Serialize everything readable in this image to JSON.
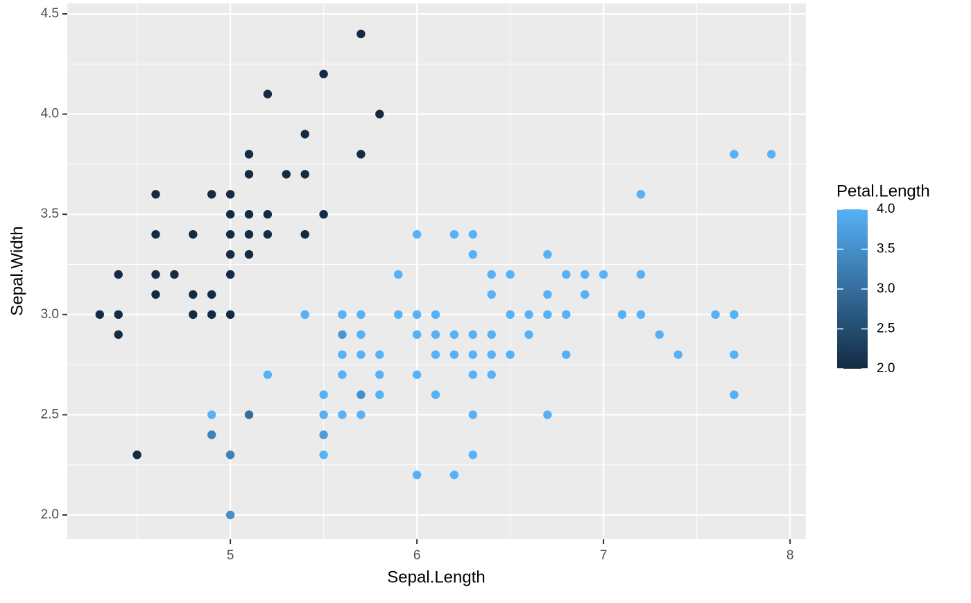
{
  "chart_data": {
    "type": "scatter",
    "x_label": "Sepal.Length",
    "y_label": "Sepal.Width",
    "xlim": [
      4.126,
      8.085
    ],
    "ylim": [
      1.879,
      4.552
    ],
    "xticks": [
      5,
      6,
      7,
      8
    ],
    "yticks": [
      {
        "value": 2,
        "label": "2.0"
      },
      {
        "value": 2.5,
        "label": "2.5"
      },
      {
        "value": 3,
        "label": "3.0"
      },
      {
        "value": 3.5,
        "label": "3.5"
      },
      {
        "value": 4,
        "label": "4.0"
      },
      {
        "value": 4.5,
        "label": "4.5"
      }
    ],
    "xminor": [
      4.5,
      5.5,
      6.5,
      7.5
    ],
    "yminor": [
      2.25,
      2.75,
      3.25,
      3.75,
      4.25
    ],
    "grid": true,
    "legend_position": "right",
    "colorbar": {
      "title": "Petal.Length",
      "lim": [
        2,
        4
      ],
      "low_color": "#132B43",
      "high_color": "#56B1F7",
      "ticks": [
        {
          "value": 2,
          "label": "2.0"
        },
        {
          "value": 2.5,
          "label": "2.5"
        },
        {
          "value": 3,
          "label": "3.0"
        },
        {
          "value": 3.5,
          "label": "3.5"
        },
        {
          "value": 4,
          "label": "4.0"
        }
      ]
    },
    "points": {
      "x": [
        5.7,
        5.5,
        5.2,
        5.8,
        5.4,
        5.1,
        5.7,
        5.1,
        5.3,
        5.4,
        4.6,
        4.9,
        5.0,
        5.0,
        5.1,
        5.2,
        5.5,
        4.6,
        4.8,
        5.0,
        5.1,
        5.2,
        5.4,
        5.0,
        5.1,
        4.4,
        4.6,
        4.7,
        5.0,
        4.6,
        4.8,
        4.9,
        4.3,
        4.4,
        4.8,
        4.9,
        5.0,
        4.4,
        4.5,
        5.1,
        4.9,
        5.0,
        5.0,
        5.6,
        5.5,
        5.7,
        6.0,
        6.2,
        6.3,
        6.3,
        6.7,
        5.9,
        6.4,
        6.5,
        6.8,
        6.9,
        7.0,
        7.2,
        6.4,
        6.7,
        6.9,
        5.4,
        5.6,
        5.7,
        5.9,
        6.0,
        6.1,
        6.5,
        6.6,
        6.7,
        6.8,
        7.1,
        7.2,
        7.6,
        7.7,
        5.7,
        6.0,
        6.1,
        6.2,
        6.3,
        6.4,
        6.6,
        7.3,
        5.6,
        5.7,
        5.8,
        6.1,
        6.2,
        6.3,
        6.4,
        6.5,
        6.8,
        7.4,
        7.7,
        5.2,
        5.6,
        5.8,
        6.0,
        6.3,
        6.4,
        5.5,
        5.8,
        6.1,
        7.7,
        4.9,
        5.5,
        5.6,
        5.7,
        6.3,
        6.7,
        5.5,
        6.3,
        6.0,
        6.2,
        7.2,
        7.7,
        7.9
      ],
      "y": [
        4.4,
        4.2,
        4.1,
        4.0,
        3.9,
        3.8,
        3.8,
        3.7,
        3.7,
        3.7,
        3.6,
        3.6,
        3.6,
        3.5,
        3.5,
        3.5,
        3.5,
        3.4,
        3.4,
        3.4,
        3.4,
        3.4,
        3.4,
        3.3,
        3.3,
        3.2,
        3.2,
        3.2,
        3.2,
        3.1,
        3.1,
        3.1,
        3.0,
        3.0,
        3.0,
        3.0,
        3.0,
        2.9,
        2.3,
        2.5,
        2.4,
        2.3,
        2.0,
        2.9,
        2.4,
        2.6,
        3.4,
        3.4,
        3.4,
        3.3,
        3.3,
        3.2,
        3.2,
        3.2,
        3.2,
        3.2,
        3.2,
        3.2,
        3.1,
        3.1,
        3.1,
        3.0,
        3.0,
        3.0,
        3.0,
        3.0,
        3.0,
        3.0,
        3.0,
        3.0,
        3.0,
        3.0,
        3.0,
        3.0,
        3.0,
        2.9,
        2.9,
        2.9,
        2.9,
        2.9,
        2.9,
        2.9,
        2.9,
        2.8,
        2.8,
        2.8,
        2.8,
        2.8,
        2.8,
        2.8,
        2.8,
        2.8,
        2.8,
        2.8,
        2.7,
        2.7,
        2.7,
        2.7,
        2.7,
        2.7,
        2.6,
        2.6,
        2.6,
        2.6,
        2.5,
        2.5,
        2.5,
        2.5,
        2.5,
        2.5,
        2.3,
        2.3,
        2.2,
        2.2,
        3.6,
        3.8,
        3.8
      ],
      "color_values": [
        2,
        2,
        2,
        2,
        2,
        2,
        2,
        2,
        2,
        2,
        2,
        2,
        2,
        2,
        2,
        2,
        2,
        2,
        2,
        2,
        2,
        2,
        2,
        2,
        2,
        2,
        2,
        2,
        2,
        2,
        2,
        2,
        2,
        2,
        2,
        2,
        2,
        2,
        2,
        3.0,
        3.3,
        3.3,
        3.5,
        3.6,
        3.7,
        3.5,
        4,
        4,
        4,
        4,
        4,
        4,
        4,
        4,
        4,
        4,
        4,
        4,
        4,
        4,
        4,
        4,
        4,
        4,
        4,
        4,
        4,
        4,
        4,
        4,
        4,
        4,
        4,
        4,
        4,
        4,
        4,
        4,
        4,
        4,
        4,
        4,
        4,
        4,
        4,
        4,
        4,
        4,
        4,
        4,
        4,
        4,
        4,
        4,
        4,
        4,
        4,
        4,
        4,
        4,
        4,
        4,
        4,
        4,
        4,
        4,
        4,
        4,
        4,
        4,
        4,
        4,
        4,
        4,
        4,
        4,
        4
      ]
    }
  }
}
